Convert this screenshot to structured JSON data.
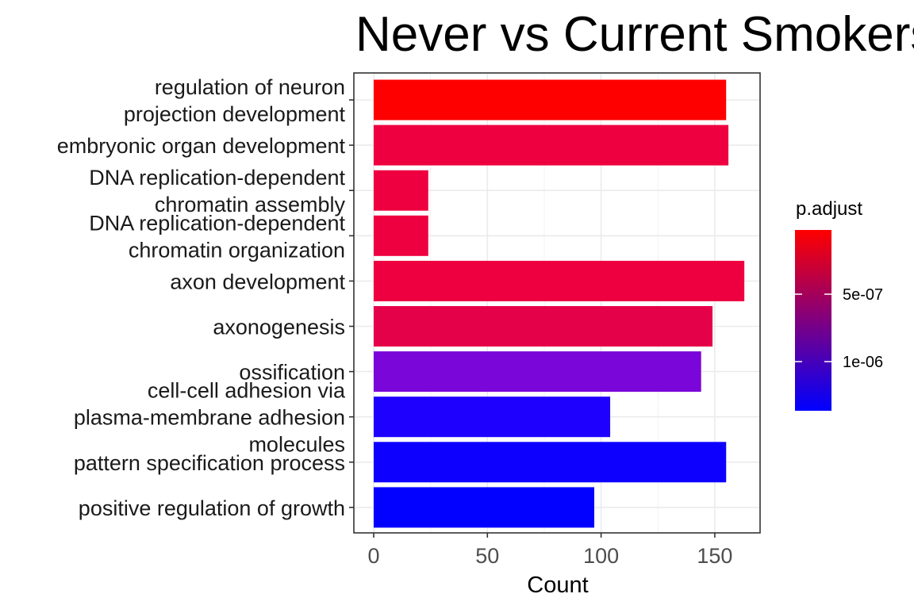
{
  "chart_data": {
    "type": "bar",
    "orientation": "horizontal",
    "title": "Never vs Current Smokers",
    "xlabel": "Count",
    "ylabel": "",
    "xlim": [
      0,
      170
    ],
    "x_ticks": [
      0,
      50,
      100,
      150
    ],
    "grid": true,
    "legend_position": "right",
    "categories": [
      "regulation of neuron\nprojection development",
      "embryonic organ development",
      "DNA replication-dependent\nchromatin assembly",
      "DNA replication-dependent\nchromatin organization",
      "axon development",
      "axonogenesis",
      "ossification",
      "cell-cell adhesion via\nplasma-membrane adhesion\nmolecules",
      "pattern specification process",
      "positive regulation of growth"
    ],
    "values": [
      155,
      156,
      24,
      24,
      163,
      149,
      144,
      104,
      155,
      97
    ],
    "bar_colors": [
      "#ff0000",
      "#ee0040",
      "#ee0040",
      "#ee0040",
      "#ee0040",
      "#e5004a",
      "#7a06da",
      "#1e00ff",
      "#0d00ff",
      "#0200ff"
    ],
    "color_legend": {
      "title": "p.adjust",
      "gradient_top": "#ff0000",
      "gradient_bottom": "#0000ff",
      "tick_labels": [
        "5e-07",
        "1e-06"
      ]
    }
  }
}
